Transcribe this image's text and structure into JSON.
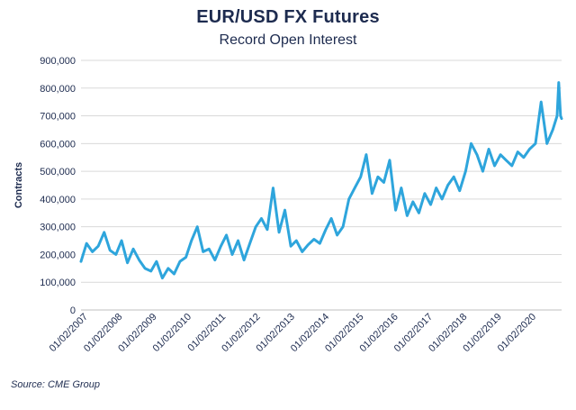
{
  "header": {
    "title": "EUR/USD FX Futures",
    "subtitle": "Record Open Interest"
  },
  "footer": {
    "source": "Source: CME Group"
  },
  "colors": {
    "series": "#2ea5dc",
    "grid": "#d9d9d9",
    "text": "#1d2b4f"
  },
  "chart_data": {
    "type": "line",
    "title": "EUR/USD FX Futures",
    "subtitle": "Record Open Interest",
    "xlabel": "",
    "ylabel": "Contracts",
    "ylim": [
      0,
      900000
    ],
    "grid": true,
    "legend": "none",
    "y_ticks": [
      "0",
      "100,000",
      "200,000",
      "300,000",
      "400,000",
      "500,000",
      "600,000",
      "700,000",
      "800,000",
      "900,000"
    ],
    "x_ticks": [
      "01/02/2007",
      "01/02/2008",
      "01/02/2009",
      "01/02/2010",
      "01/02/2011",
      "01/02/2012",
      "01/02/2013",
      "01/02/2014",
      "01/02/2015",
      "01/02/2016",
      "01/02/2017",
      "01/02/2018",
      "01/02/2019",
      "01/02/2020"
    ],
    "series": [
      {
        "x": [
          "2007-01-02",
          "2007-03-01",
          "2007-05-01",
          "2007-07-01",
          "2007-09-01",
          "2007-11-01",
          "2008-01-02",
          "2008-03-01",
          "2008-05-01",
          "2008-07-01",
          "2008-09-01",
          "2008-11-01",
          "2009-01-02",
          "2009-03-01",
          "2009-05-01",
          "2009-07-01",
          "2009-09-01",
          "2009-11-01",
          "2010-01-02",
          "2010-03-01",
          "2010-05-01",
          "2010-07-01",
          "2010-09-01",
          "2010-11-01",
          "2011-01-02",
          "2011-03-01",
          "2011-05-01",
          "2011-07-01",
          "2011-09-01",
          "2011-11-01",
          "2012-01-02",
          "2012-03-01",
          "2012-05-01",
          "2012-07-01",
          "2012-09-01",
          "2012-11-01",
          "2013-01-02",
          "2013-03-01",
          "2013-05-01",
          "2013-07-01",
          "2013-09-01",
          "2013-11-01",
          "2014-01-02",
          "2014-03-01",
          "2014-05-01",
          "2014-07-01",
          "2014-09-01",
          "2014-11-01",
          "2015-01-02",
          "2015-03-01",
          "2015-05-01",
          "2015-07-01",
          "2015-09-01",
          "2015-11-01",
          "2016-01-02",
          "2016-03-01",
          "2016-05-01",
          "2016-07-01",
          "2016-09-01",
          "2016-11-01",
          "2017-01-02",
          "2017-03-01",
          "2017-05-01",
          "2017-07-01",
          "2017-09-01",
          "2017-11-01",
          "2018-01-02",
          "2018-03-01",
          "2018-05-01",
          "2018-07-01",
          "2018-09-01",
          "2018-11-01",
          "2019-01-02",
          "2019-03-01",
          "2019-05-01",
          "2019-07-01",
          "2019-09-01",
          "2019-11-01",
          "2020-01-02",
          "2020-03-01",
          "2020-05-01",
          "2020-07-01",
          "2020-08-15",
          "2020-09-01",
          "2020-09-20",
          "2020-10-01"
        ],
        "values": [
          175000,
          240000,
          210000,
          230000,
          280000,
          215000,
          200000,
          250000,
          170000,
          220000,
          180000,
          150000,
          140000,
          175000,
          115000,
          150000,
          130000,
          175000,
          190000,
          250000,
          300000,
          210000,
          220000,
          180000,
          230000,
          270000,
          200000,
          250000,
          180000,
          240000,
          300000,
          330000,
          290000,
          440000,
          280000,
          360000,
          230000,
          250000,
          210000,
          235000,
          255000,
          240000,
          290000,
          330000,
          270000,
          300000,
          400000,
          440000,
          480000,
          560000,
          420000,
          480000,
          460000,
          540000,
          360000,
          440000,
          340000,
          390000,
          350000,
          420000,
          380000,
          440000,
          400000,
          450000,
          480000,
          430000,
          500000,
          600000,
          560000,
          500000,
          580000,
          520000,
          560000,
          540000,
          520000,
          570000,
          550000,
          580000,
          600000,
          750000,
          600000,
          650000,
          700000,
          820000,
          700000,
          690000
        ]
      }
    ]
  }
}
